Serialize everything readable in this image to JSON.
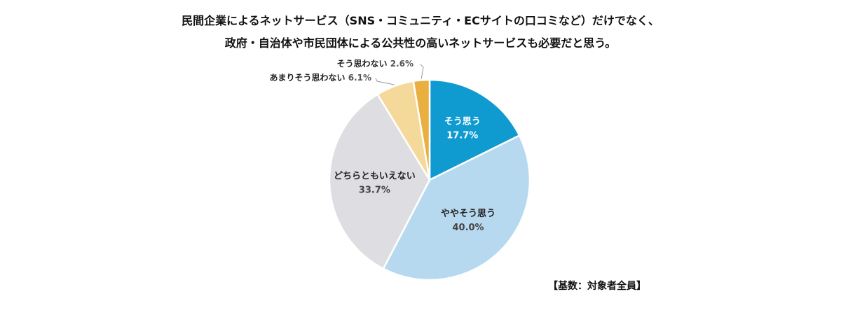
{
  "chart_data": {
    "type": "pie",
    "title_line1": "民間企業によるネットサービス（SNS・コミュニティ・ECサイトの口コミなど）だけでなく、",
    "title_line2": "政府・自治体や市民団体による公共性の高いネットサービスも必要だと思う。",
    "slices": [
      {
        "label": "そう思う",
        "value": 17.7,
        "value_label": "17.7%",
        "color": "#0f9bd0"
      },
      {
        "label": "ややそう思う",
        "value": 40.0,
        "value_label": "40.0%",
        "color": "#b7d9f0"
      },
      {
        "label": "どちらともいえない",
        "value": 33.7,
        "value_label": "33.7%",
        "color": "#dedde2"
      },
      {
        "label": "あまりそう思わない",
        "value": 6.1,
        "value_label": "6.1%",
        "color": "#f4d99a"
      },
      {
        "label": "そう思わない",
        "value": 2.6,
        "value_label": "2.6%",
        "color": "#e9b03f"
      }
    ],
    "base_note": "【基数：対象者全員】"
  }
}
